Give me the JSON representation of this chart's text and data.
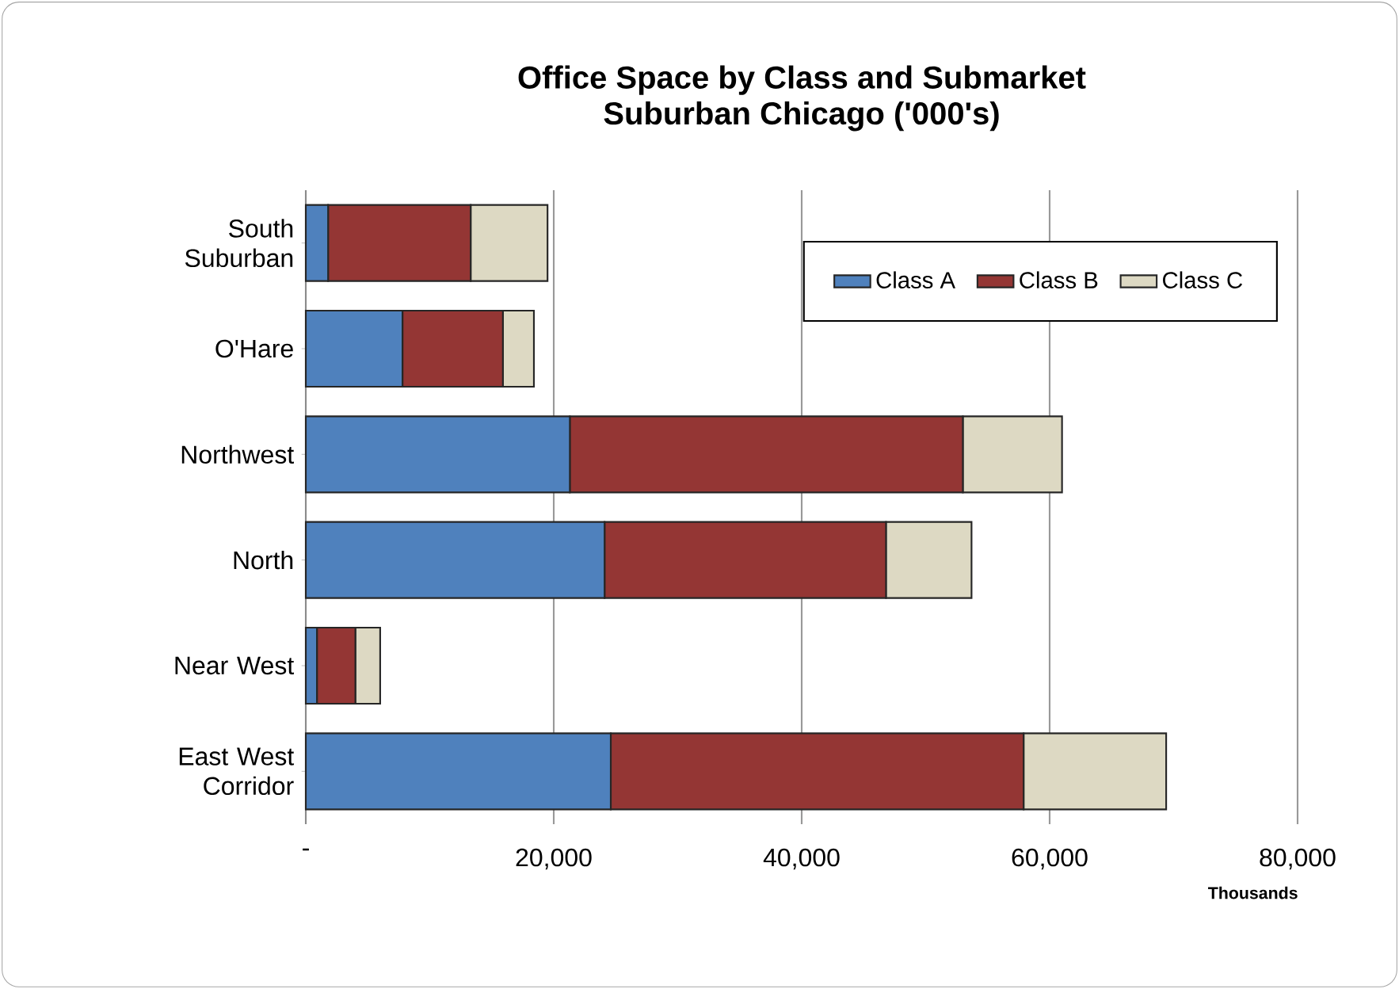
{
  "chart_data": {
    "type": "bar",
    "orientation": "horizontal",
    "stacked": true,
    "title": "Office Space by Class and Submarket\nSuburban Chicago ('000's)",
    "xlabel": "Thousands",
    "categories": [
      "South Suburban",
      "O'Hare",
      "Northwest",
      "North",
      "Near West",
      "East West Corridor"
    ],
    "series": [
      {
        "name": "Class A",
        "color": "#4f81bd",
        "values": [
          1800,
          7800,
          21300,
          24100,
          900,
          24600
        ]
      },
      {
        "name": "Class B",
        "color": "#943634",
        "values": [
          11500,
          8100,
          31700,
          22700,
          3100,
          33300
        ]
      },
      {
        "name": "Class C",
        "color": "#ddd9c3",
        "values": [
          6200,
          2500,
          8000,
          6900,
          2000,
          11500
        ]
      }
    ],
    "xlim": [
      0,
      80000
    ],
    "xticks": [
      {
        "value": 0,
        "label": "-"
      },
      {
        "value": 20000,
        "label": "20,000"
      },
      {
        "value": 40000,
        "label": "40,000"
      },
      {
        "value": 60000,
        "label": "60,000"
      },
      {
        "value": 80000,
        "label": "80,000"
      }
    ],
    "grid": "x",
    "legend": "top right"
  }
}
